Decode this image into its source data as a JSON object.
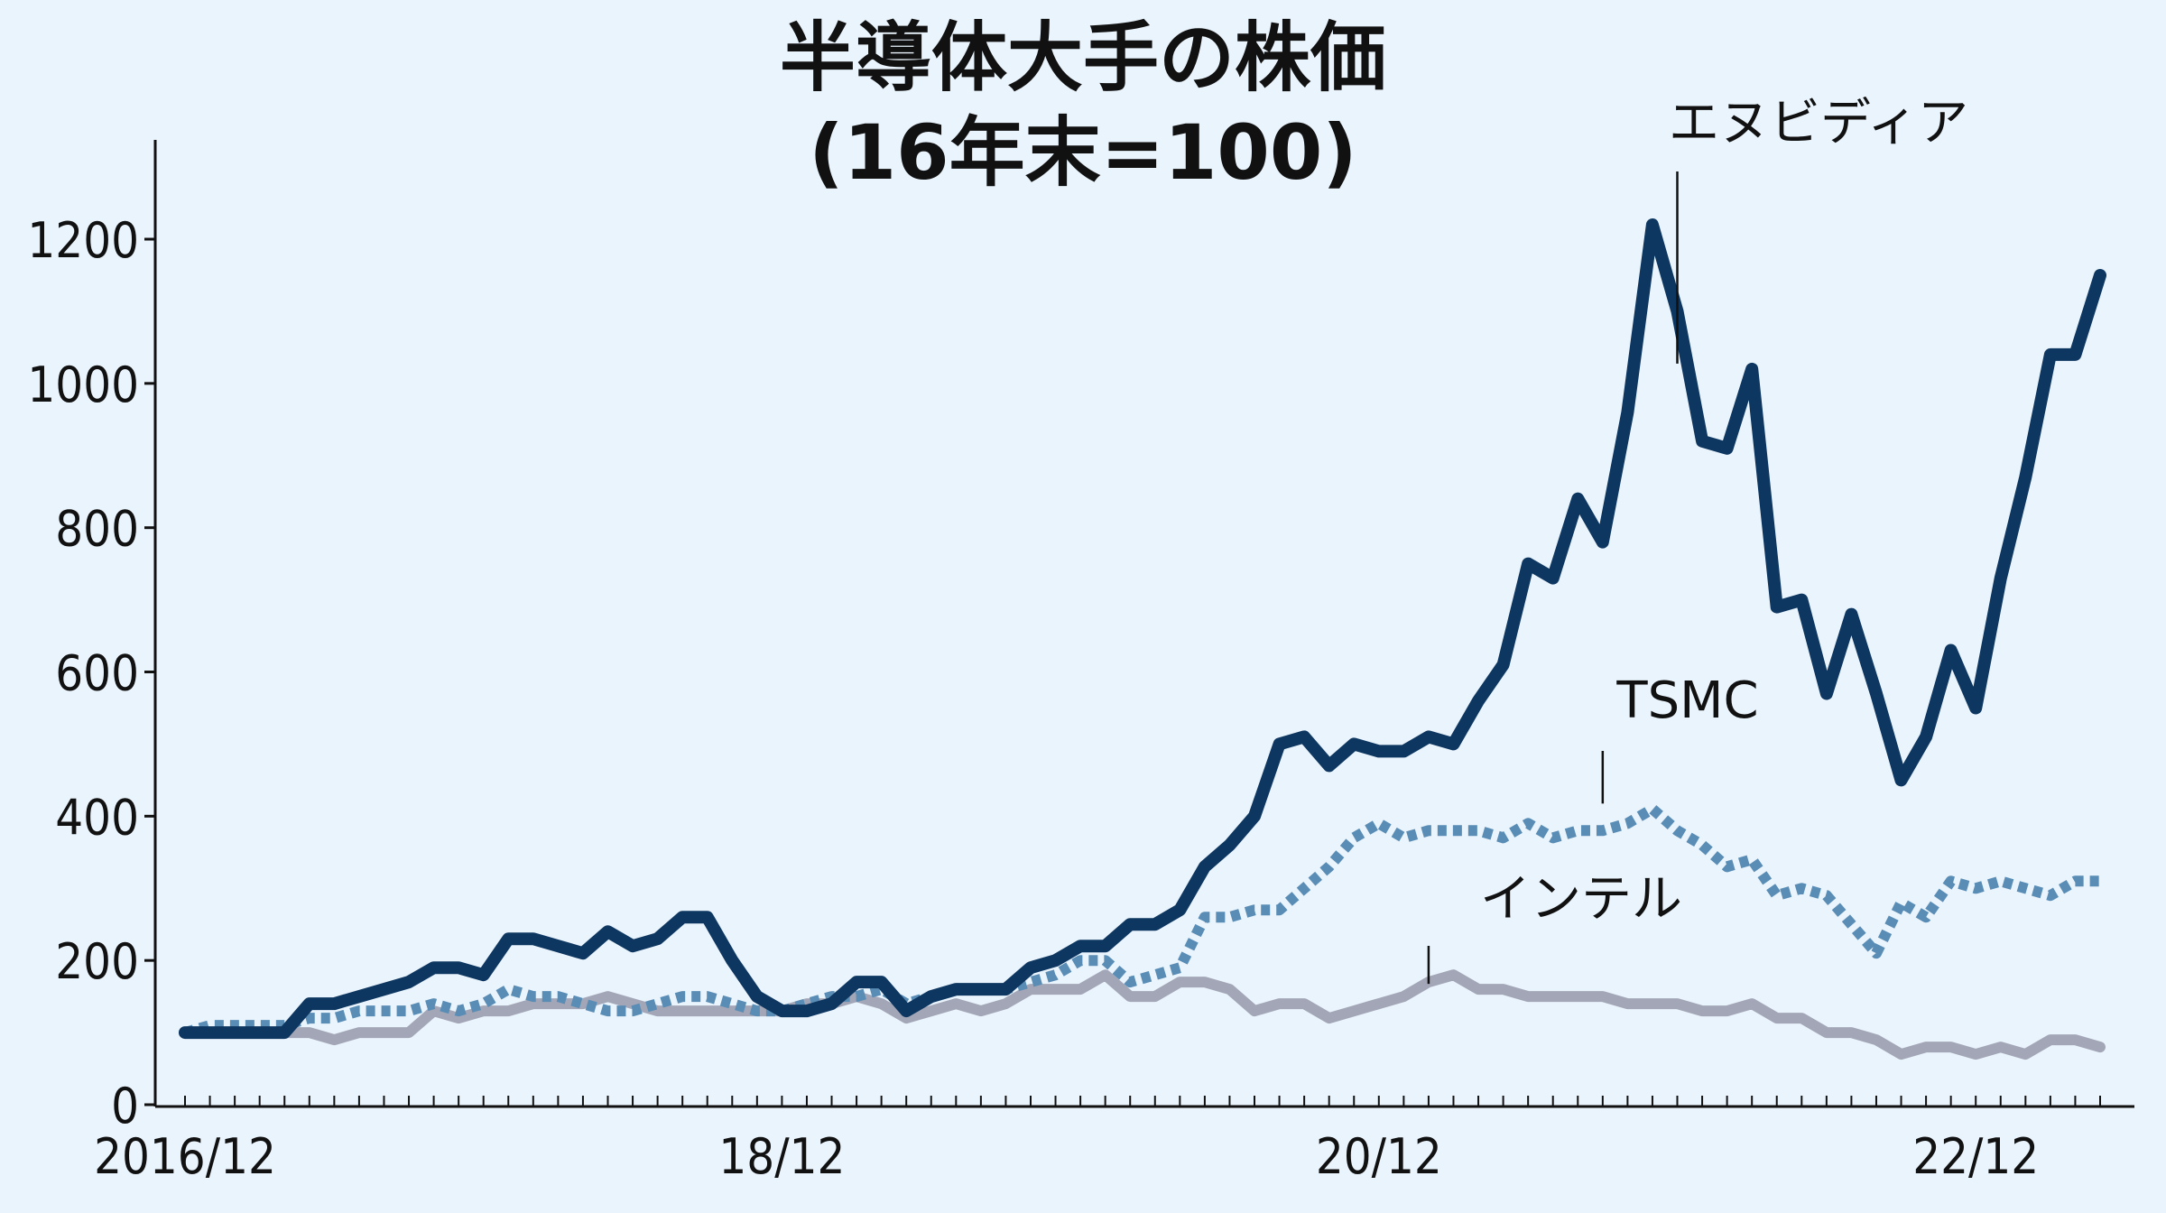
{
  "chart_data": {
    "type": "line",
    "title": "半導体大手の株価",
    "subtitle": "(16年末=100)",
    "xlabel": "",
    "ylabel": "",
    "ylim": [
      0,
      1300
    ],
    "y_ticks": [
      0,
      200,
      400,
      600,
      800,
      1000,
      1200
    ],
    "y_tick_labels": [
      "0",
      "200",
      "400",
      "600",
      "800",
      "1000",
      "1200"
    ],
    "x_range": [
      "2016-12",
      "2023-05"
    ],
    "x_ticks": [
      "2016-12",
      "2018-12",
      "2020-12",
      "2022-12"
    ],
    "x_tick_labels": [
      "2016/12",
      "18/12",
      "20/12",
      "22/12"
    ],
    "grid": false,
    "legend": "direct labels on lines",
    "x": [
      "2016-12",
      "2017-01",
      "2017-02",
      "2017-03",
      "2017-04",
      "2017-05",
      "2017-06",
      "2017-07",
      "2017-08",
      "2017-09",
      "2017-10",
      "2017-11",
      "2017-12",
      "2018-01",
      "2018-02",
      "2018-03",
      "2018-04",
      "2018-05",
      "2018-06",
      "2018-07",
      "2018-08",
      "2018-09",
      "2018-10",
      "2018-11",
      "2018-12",
      "2019-01",
      "2019-02",
      "2019-03",
      "2019-04",
      "2019-05",
      "2019-06",
      "2019-07",
      "2019-08",
      "2019-09",
      "2019-10",
      "2019-11",
      "2019-12",
      "2020-01",
      "2020-02",
      "2020-03",
      "2020-04",
      "2020-05",
      "2020-06",
      "2020-07",
      "2020-08",
      "2020-09",
      "2020-10",
      "2020-11",
      "2020-12",
      "2021-01",
      "2021-02",
      "2021-03",
      "2021-04",
      "2021-05",
      "2021-06",
      "2021-07",
      "2021-08",
      "2021-09",
      "2021-10",
      "2021-11",
      "2021-12",
      "2022-01",
      "2022-02",
      "2022-03",
      "2022-04",
      "2022-05",
      "2022-06",
      "2022-07",
      "2022-08",
      "2022-09",
      "2022-10",
      "2022-11",
      "2022-12",
      "2023-01",
      "2023-02",
      "2023-03",
      "2023-04",
      "2023-05"
    ],
    "series": [
      {
        "name": "エヌビディア",
        "color": "#0d3660",
        "style": "solid",
        "values": [
          100,
          100,
          100,
          100,
          100,
          140,
          140,
          150,
          160,
          170,
          190,
          190,
          180,
          230,
          230,
          220,
          210,
          240,
          220,
          230,
          260,
          260,
          200,
          150,
          130,
          130,
          140,
          170,
          170,
          130,
          150,
          160,
          160,
          160,
          190,
          200,
          220,
          220,
          250,
          250,
          270,
          330,
          360,
          400,
          500,
          510,
          470,
          500,
          490,
          490,
          510,
          500,
          560,
          610,
          750,
          730,
          840,
          780,
          960,
          1220,
          1100,
          920,
          910,
          1020,
          690,
          700,
          570,
          680,
          570,
          450,
          510,
          630,
          550,
          730,
          870,
          1040,
          1040,
          1150
        ]
      },
      {
        "name": "TSMC",
        "color": "#5a8db5",
        "style": "dotted",
        "values": [
          100,
          110,
          110,
          110,
          110,
          120,
          120,
          130,
          130,
          130,
          140,
          130,
          140,
          160,
          150,
          150,
          140,
          130,
          130,
          140,
          150,
          150,
          140,
          130,
          130,
          140,
          150,
          150,
          160,
          140,
          150,
          160,
          160,
          160,
          170,
          180,
          200,
          200,
          170,
          180,
          190,
          260,
          260,
          270,
          270,
          300,
          330,
          370,
          390,
          370,
          380,
          380,
          380,
          370,
          390,
          370,
          380,
          380,
          390,
          410,
          380,
          360,
          330,
          340,
          290,
          300,
          290,
          250,
          210,
          280,
          260,
          310,
          300,
          310,
          300,
          290,
          310,
          310
        ]
      },
      {
        "name": "インテル",
        "color": "#a3a6b6",
        "style": "solid",
        "values": [
          100,
          100,
          100,
          100,
          100,
          100,
          90,
          100,
          100,
          100,
          130,
          120,
          130,
          130,
          140,
          140,
          140,
          150,
          140,
          130,
          130,
          130,
          130,
          130,
          130,
          140,
          140,
          150,
          140,
          120,
          130,
          140,
          130,
          140,
          160,
          160,
          160,
          180,
          150,
          150,
          170,
          170,
          160,
          130,
          140,
          140,
          120,
          130,
          140,
          150,
          170,
          180,
          160,
          160,
          150,
          150,
          150,
          150,
          140,
          140,
          140,
          130,
          130,
          140,
          120,
          120,
          100,
          100,
          90,
          70,
          80,
          80,
          70,
          80,
          70,
          90,
          90,
          80
        ]
      }
    ],
    "annotations": [
      {
        "series": "エヌビディア",
        "text": "エヌビディア",
        "x": "2021-12",
        "y": 1020
      },
      {
        "series": "TSMC",
        "text": "TSMC",
        "x": "2021-09",
        "y": 410
      },
      {
        "series": "インテル",
        "text": "インテル",
        "x": "2021-02",
        "y": 160
      }
    ]
  }
}
